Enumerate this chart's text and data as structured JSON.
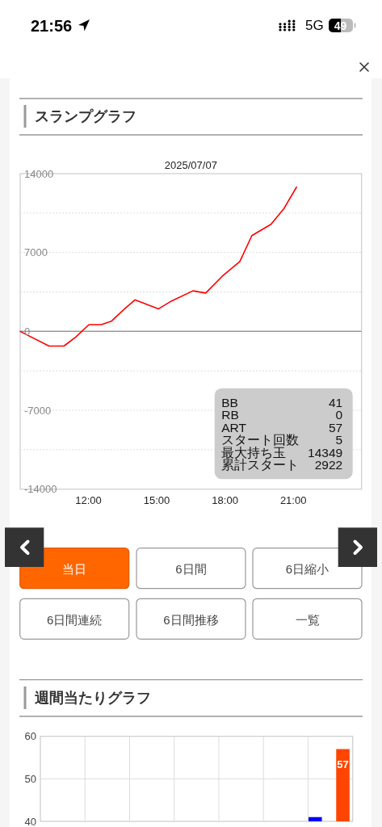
{
  "chart_data": [
    {
      "type": "other",
      "annotations": [
        "21:56",
        "5G",
        "49"
      ]
    },
    {
      "type": "line",
      "title": "スランプグラフ",
      "subtitle": "2025/07/07",
      "x": [
        9,
        10.27,
        10.92,
        11.44,
        12.02,
        12.56,
        13.0,
        13.59,
        14.04,
        15.08,
        15.65,
        16.59,
        17.15,
        17.88,
        18.65,
        19.18,
        20.02,
        20.59,
        21.14
      ],
      "series": [
        {
          "color": "#ff0000",
          "values": [
            0,
            -1300,
            -1300,
            -500,
            600,
            600,
            900,
            2000,
            2800,
            2000,
            2700,
            3600,
            3400,
            4900,
            6200,
            8500,
            9500,
            10900,
            12800
          ]
        }
      ],
      "xlim": [
        9,
        24
      ],
      "xticks": [
        {
          "value": 12,
          "label": "12:00"
        },
        {
          "value": 15,
          "label": "15:00"
        },
        {
          "value": 18,
          "label": "18:00"
        },
        {
          "value": 21,
          "label": "21:00"
        }
      ],
      "ylim": [
        -14000,
        14000
      ],
      "yticks": [
        -14000,
        {
          "value": -10500,
          "label": null
        },
        -7000,
        {
          "value": -3500,
          "label": null
        },
        0,
        {
          "value": 3500,
          "label": null
        },
        7000,
        {
          "value": 10500,
          "label": null
        },
        14000
      ],
      "grid": "y",
      "ref_lines": [
        {
          "axis": "y",
          "value": 0,
          "color": "#999999"
        }
      ],
      "annotations": [
        "BB",
        "41",
        "RB",
        "0",
        "ART",
        "57",
        "スタート回数",
        "5",
        "最大持ち玉",
        "14349",
        "累計スタート",
        "2922"
      ]
    },
    {
      "type": "other",
      "annotations": [
        "当日",
        "6日間",
        "6日縮小",
        "6日間連続",
        "6日間推移",
        "一覧"
      ]
    },
    {
      "type": "bar",
      "title": "週間当たりグラフ",
      "categories": [
        null,
        null,
        null,
        null,
        null,
        null,
        null
      ],
      "series": [
        {
          "color": "#0000ff",
          "values": [
            null,
            null,
            null,
            null,
            null,
            null,
            41
          ]
        },
        {
          "color": "#ff4500",
          "values": [
            null,
            null,
            null,
            null,
            null,
            null,
            57
          ],
          "value_labels": [
            null,
            null,
            null,
            null,
            null,
            null,
            "57"
          ]
        }
      ],
      "ylim": [
        40,
        60
      ],
      "yticks": [
        40,
        50,
        60
      ],
      "grid": true
    }
  ]
}
